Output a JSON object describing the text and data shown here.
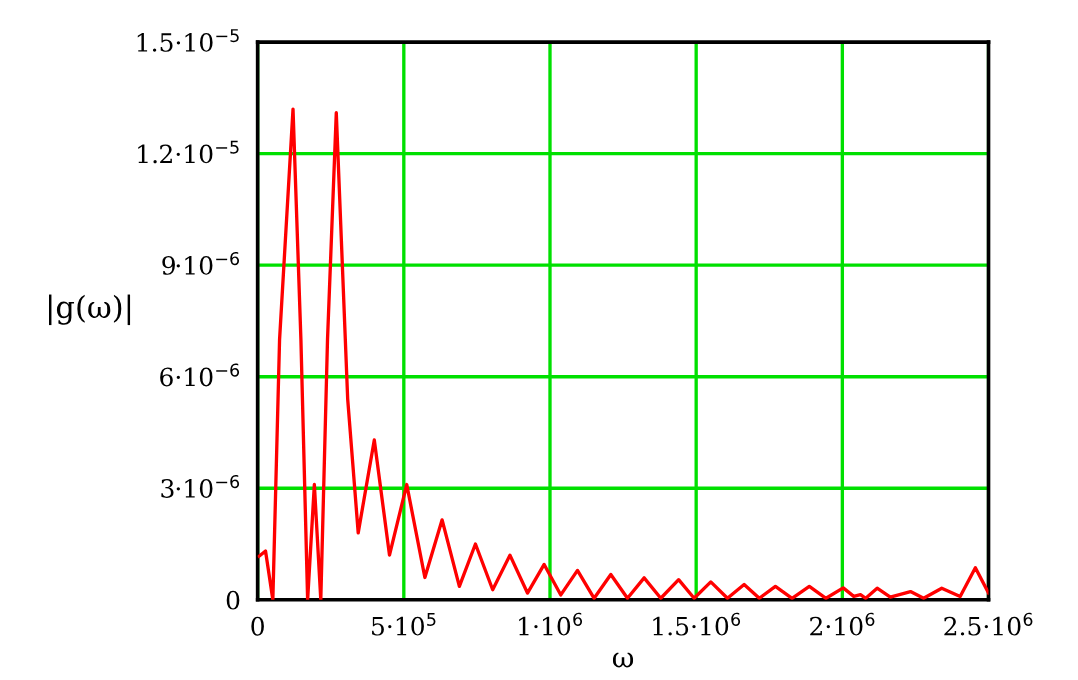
{
  "chart_data": {
    "type": "line",
    "xlabel": "ω",
    "ylabel": "|g(ω)|",
    "xlim": [
      0,
      2500000
    ],
    "ylim": [
      0,
      1.5e-05
    ],
    "xticks": [
      0,
      {
        "value": 500000,
        "label": "5·10$^{5}$"
      },
      {
        "value": 1000000,
        "label": "1·10$^{6}$"
      },
      {
        "value": 1500000,
        "label": "1.5·10$^{6}$"
      },
      {
        "value": 2000000,
        "label": "2·10$^{6}$"
      },
      {
        "value": 2500000,
        "label": "2.5·10$^{6}$"
      }
    ],
    "yticks": [
      0,
      {
        "value": 3e-06,
        "label": "3·10$^{−6}$"
      },
      {
        "value": 6e-06,
        "label": "6·10$^{−6}$"
      },
      {
        "value": 9e-06,
        "label": "9·10$^{−6}$"
      },
      {
        "value": 1.2e-05,
        "label": "1.2·10$^{−5}$"
      },
      {
        "value": 1.5e-05,
        "label": "1.5·10$^{−5}$"
      }
    ],
    "grid": true,
    "marker": "none",
    "line_style": "solid",
    "series": [
      {
        "color": "#ff0000",
        "x": [
          5000,
          27000,
          52000,
          75000,
          121000,
          148000,
          171000,
          194000,
          216000,
          239000,
          269000,
          308000,
          344000,
          399000,
          451000,
          510000,
          572000,
          631000,
          690000,
          745000,
          804000,
          863000,
          923000,
          980000,
          1037000,
          1094000,
          1151000,
          1208000,
          1265000,
          1322000,
          1379000,
          1440000,
          1493000,
          1550000,
          1607000,
          1664000,
          1716000,
          1771000,
          1828000,
          1887000,
          1944000,
          2003000,
          2039000,
          2062000,
          2080000,
          2119000,
          2164000,
          2233000,
          2278000,
          2340000,
          2403000,
          2455000,
          2500000
        ],
        "values": [
          1.17e-06,
          1.31e-06,
          0,
          7e-06,
          1.32e-05,
          7e-06,
          0,
          3.1e-06,
          0,
          7e-06,
          1.31e-05,
          5.4e-06,
          1.8e-06,
          4.3e-06,
          1.2e-06,
          3.1e-06,
          6e-07,
          2.15e-06,
          3.6e-07,
          1.5e-06,
          2.7e-07,
          1.2e-06,
          1.8e-07,
          9.5e-07,
          1.3e-07,
          7.9e-07,
          4e-08,
          6.8e-07,
          4e-08,
          5.9e-07,
          4e-08,
          5.4e-07,
          4e-08,
          4.8e-07,
          4e-08,
          4.1e-07,
          4e-08,
          3.6e-07,
          4e-08,
          3.6e-07,
          4e-08,
          3.2e-07,
          9e-08,
          1.4e-07,
          4e-08,
          3.1e-07,
          7e-08,
          2.2e-07,
          4e-08,
          3.1e-07,
          9e-08,
          8.6e-07,
          1.8e-07
        ]
      }
    ]
  }
}
